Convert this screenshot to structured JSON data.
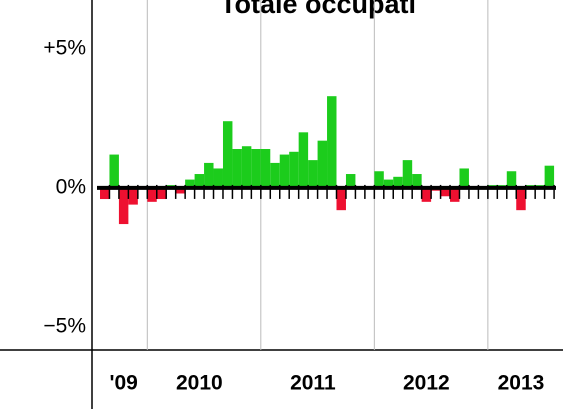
{
  "chart_data": {
    "type": "bar",
    "title": "Totale occupati",
    "categories": [
      null,
      null,
      "'09",
      null,
      null,
      null,
      null,
      null,
      null,
      null,
      "2010",
      null,
      null,
      null,
      null,
      null,
      null,
      null,
      null,
      null,
      null,
      null,
      "2011",
      null,
      null,
      null,
      null,
      null,
      null,
      null,
      null,
      null,
      null,
      null,
      "2012",
      null,
      null,
      null,
      null,
      null,
      null,
      null,
      null,
      null,
      "2013",
      null,
      null,
      null
    ],
    "values": [
      -0.4,
      1.2,
      -1.3,
      -0.6,
      0.05,
      -0.5,
      -0.4,
      0.1,
      -0.2,
      0.3,
      0.5,
      0.9,
      0.7,
      2.4,
      1.4,
      1.5,
      1.4,
      1.4,
      0.9,
      1.2,
      1.3,
      2.0,
      1.0,
      1.7,
      3.3,
      -0.8,
      0.5,
      0.05,
      0.05,
      0.6,
      0.3,
      0.4,
      1.0,
      0.5,
      -0.5,
      -0.1,
      -0.3,
      -0.5,
      0.7,
      0.05,
      0.05,
      0.1,
      0.1,
      0.6,
      -0.8,
      0.1,
      0.1,
      0.8
    ],
    "positive_color": "#1ccc1c",
    "negative_color": "#ee1030",
    "ylim": [
      -5.83,
      6.76
    ],
    "yticks": [
      {
        "value": 5,
        "label": "+5%"
      },
      {
        "value": 0,
        "label": "0%"
      },
      {
        "value": -5,
        "label": "−5%"
      }
    ],
    "grid": true
  }
}
